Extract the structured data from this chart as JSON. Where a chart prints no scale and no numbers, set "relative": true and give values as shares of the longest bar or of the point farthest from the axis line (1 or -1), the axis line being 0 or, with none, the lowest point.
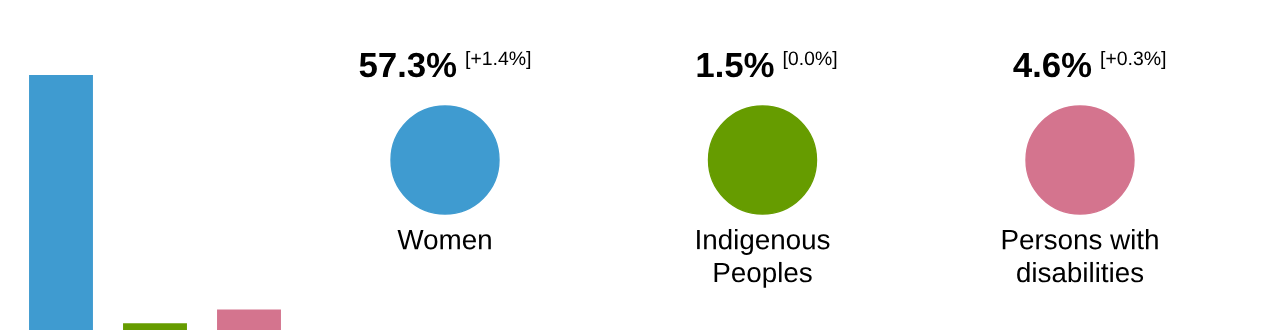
{
  "chart_data": [
    {
      "type": "bar",
      "categories": [
        null,
        null,
        null
      ],
      "relative": true,
      "values": [
        1,
        0.026,
        0.08
      ],
      "colors": [
        "#3f9bd0",
        "#669c00",
        "#d4748e"
      ]
    },
    {
      "type": "other",
      "categories": [
        "Women",
        "Indigenous Peoples",
        "Persons with disabilities"
      ],
      "colors": [
        "#3f9bd0",
        "#669c00",
        "#d4748e"
      ],
      "value_labels": [
        "57.3%",
        "1.5%",
        "4.6%"
      ],
      "annotations": [
        "[+1.4%]",
        "[0.0%]",
        "[+0.3%]"
      ]
    }
  ]
}
